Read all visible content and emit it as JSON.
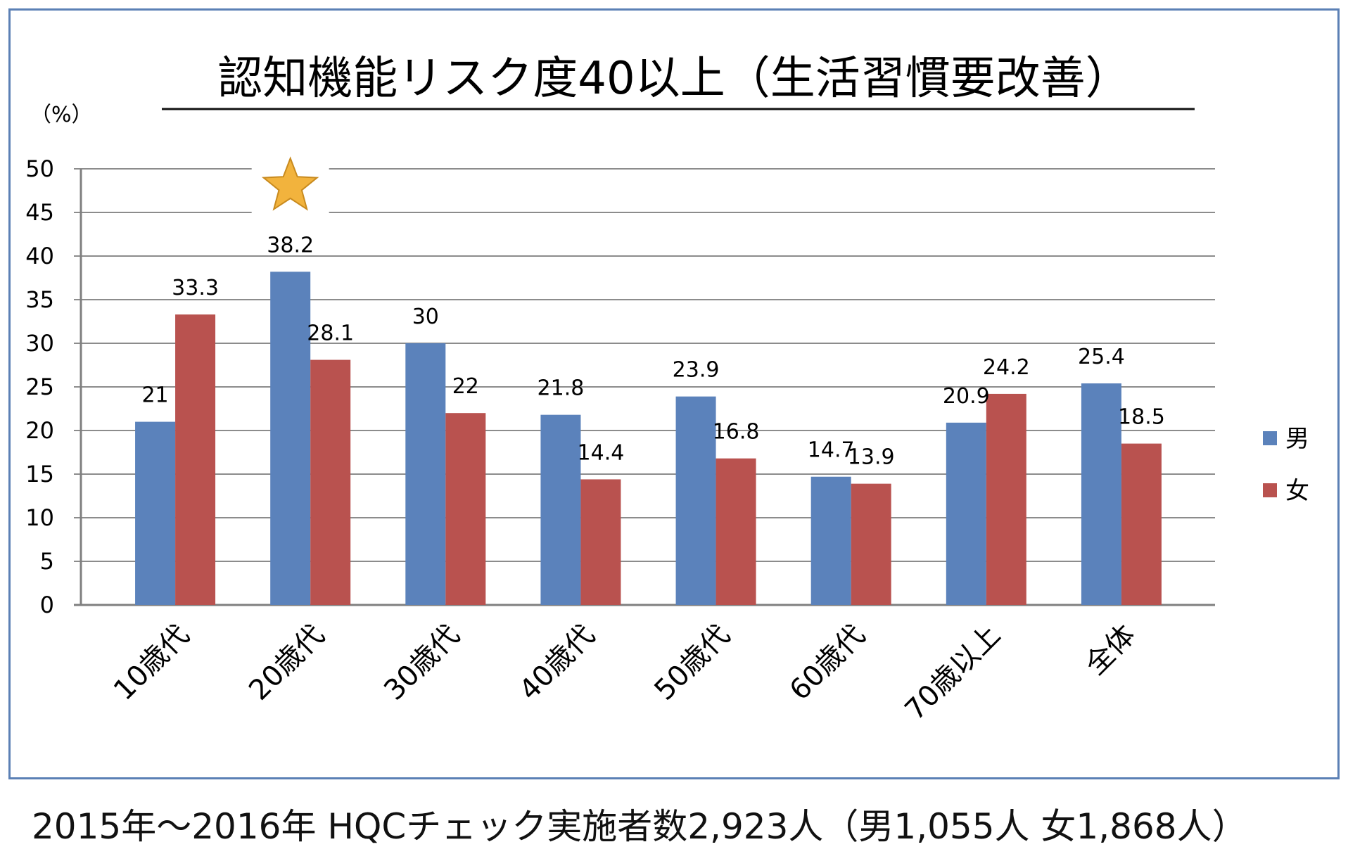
{
  "chart_data": {
    "type": "bar",
    "title": "認知機能リスク度40以上（生活習慣要改善）",
    "ylabel": "（%）",
    "xlabel": "",
    "ylim": [
      0,
      50
    ],
    "yticks": [
      0,
      5,
      10,
      15,
      20,
      25,
      30,
      35,
      40,
      45,
      50
    ],
    "grid": true,
    "legend_position": "right",
    "categories": [
      "10歳代",
      "20歳代",
      "30歳代",
      "40歳代",
      "50歳代",
      "60歳代",
      "70歳以上",
      "全体"
    ],
    "series": [
      {
        "name": "男",
        "color": "#5b82bb",
        "values": [
          21,
          38.2,
          30,
          21.8,
          23.9,
          14.7,
          20.9,
          25.4
        ]
      },
      {
        "name": "女",
        "color": "#b9524f",
        "values": [
          33.3,
          28.1,
          22,
          14.4,
          16.8,
          13.9,
          24.2,
          18.5
        ]
      }
    ],
    "annotations": [
      {
        "type": "star-icon",
        "category": "20歳代",
        "color": "#f2b33d"
      }
    ]
  },
  "footer": {
    "text": "2015年～2016年 HQCチェック実施者数2,923人（男1,055人 女1,868人）"
  }
}
